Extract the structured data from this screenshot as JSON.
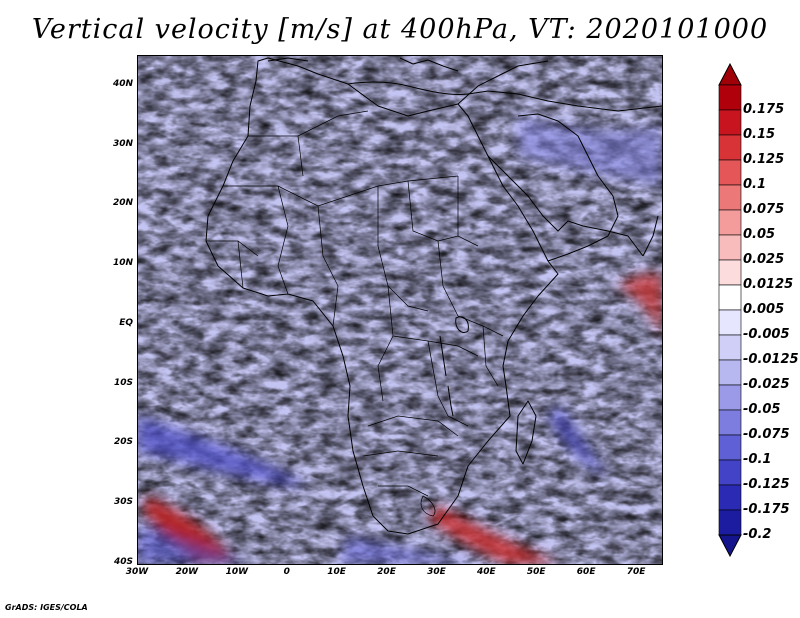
{
  "title": "Vertical velocity [m/s] at 400hPa, VT: 2020101000",
  "footer": "GrADS: IGES/COLA",
  "map": {
    "region": "Africa",
    "projection": "latlon",
    "lon_range": [
      -30,
      75
    ],
    "lat_range": [
      -40,
      45
    ],
    "x_ticks": [
      "30W",
      "20W",
      "10W",
      "0",
      "10E",
      "20E",
      "30E",
      "40E",
      "50E",
      "60E",
      "70E"
    ],
    "y_ticks": [
      "40N",
      "30N",
      "20N",
      "10N",
      "EQ",
      "10S",
      "20S",
      "30S",
      "40S"
    ],
    "x_tick_values": [
      -30,
      -20,
      -10,
      0,
      10,
      20,
      30,
      40,
      50,
      60,
      70
    ],
    "y_tick_values": [
      40,
      30,
      20,
      10,
      0,
      -10,
      -20,
      -30,
      -40
    ],
    "field": "vertical velocity",
    "units": "m/s",
    "level": "400hPa",
    "valid_time": "2020101000",
    "palette_note": "red = positive values, blue = negative values"
  },
  "colorbar": {
    "labels": [
      "0.175",
      "0.15",
      "0.125",
      "0.1",
      "0.075",
      "0.05",
      "0.025",
      "0.0125",
      "0.005",
      "-0.005",
      "-0.0125",
      "-0.025",
      "-0.05",
      "-0.075",
      "-0.1",
      "-0.125",
      "-0.175",
      "-0.2"
    ],
    "colors": [
      "#b0000b",
      "#c8141f",
      "#d83438",
      "#e45658",
      "#ec7978",
      "#f49c9c",
      "#f8bcbc",
      "#fcdcdc",
      "#ffffff",
      "#e6e6ff",
      "#cfcff7",
      "#b8b8f0",
      "#9a9ae8",
      "#7d7de0",
      "#5f5fd6",
      "#4343c8",
      "#2a2ab4",
      "#1c1ca0"
    ],
    "top_arrow_color": "#a00008",
    "bottom_arrow_color": "#14148c"
  }
}
